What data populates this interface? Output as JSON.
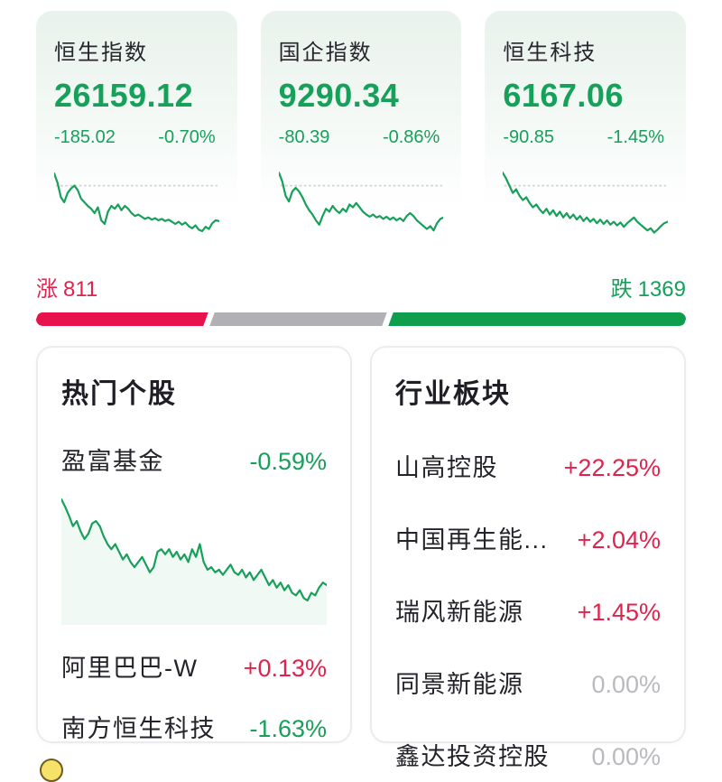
{
  "colors": {
    "up": "#e0234d",
    "down": "#16a05a",
    "flat": "#b9b9bf",
    "bar_up": "#e8124d",
    "bar_flat": "#b1b1b5",
    "bar_down": "#0e9e4e",
    "dash": "#d2d2d2"
  },
  "indices": [
    {
      "name": "恒生指数",
      "value": "26159.12",
      "change": "-185.02",
      "change_pct": "-0.70%",
      "trend": "down",
      "ref": 78,
      "sparkline": [
        95,
        82,
        62,
        55,
        68,
        74,
        78,
        72,
        60,
        55,
        50,
        46,
        40,
        48,
        30,
        25,
        42,
        50,
        46,
        52,
        44,
        50,
        46,
        40,
        36,
        38,
        35,
        32,
        34,
        31,
        33,
        30,
        32,
        29,
        31,
        28,
        25,
        28,
        24,
        27,
        22,
        19,
        23,
        17,
        15,
        21,
        18,
        26,
        30,
        29
      ]
    },
    {
      "name": "国企指数",
      "value": "9290.34",
      "change": "-80.39",
      "change_pct": "-0.86%",
      "trend": "down",
      "ref": 78,
      "sparkline": [
        96,
        84,
        64,
        56,
        70,
        75,
        70,
        62,
        52,
        44,
        38,
        30,
        24,
        36,
        46,
        42,
        50,
        44,
        40,
        46,
        42,
        52,
        48,
        54,
        48,
        42,
        38,
        35,
        38,
        34,
        36,
        32,
        35,
        31,
        34,
        30,
        33,
        29,
        36,
        40,
        36,
        30,
        26,
        22,
        18,
        22,
        16,
        26,
        32,
        34
      ]
    },
    {
      "name": "恒生科技",
      "value": "6167.06",
      "change": "-90.85",
      "change_pct": "-1.45%",
      "trend": "down",
      "ref": 78,
      "sparkline": [
        96,
        88,
        78,
        68,
        73,
        64,
        58,
        62,
        54,
        48,
        52,
        45,
        40,
        46,
        38,
        44,
        36,
        42,
        34,
        40,
        33,
        38,
        31,
        36,
        29,
        34,
        28,
        32,
        26,
        31,
        25,
        30,
        24,
        28,
        23,
        27,
        21,
        26,
        30,
        34,
        28,
        24,
        20,
        16,
        19,
        13,
        17,
        22,
        26,
        28
      ]
    }
  ],
  "breadth": {
    "up_label": "涨",
    "up_count": "811",
    "down_label": "跌",
    "down_count": "1369"
  },
  "hot_stocks": {
    "title": "热门个股",
    "featured": {
      "name": "盈富基金",
      "change_pct": "-0.59%",
      "trend": "down",
      "sparkline": [
        98,
        92,
        85,
        77,
        81,
        73,
        67,
        71,
        79,
        81,
        77,
        69,
        63,
        59,
        63,
        57,
        51,
        55,
        49,
        45,
        49,
        53,
        47,
        41,
        45,
        57,
        59,
        55,
        59,
        53,
        57,
        51,
        55,
        49,
        59,
        53,
        63,
        49,
        43,
        45,
        41,
        43,
        39,
        43,
        47,
        41,
        39,
        43,
        37,
        41,
        35,
        39,
        43,
        37,
        31,
        35,
        29,
        33,
        27,
        31,
        25,
        23,
        27,
        21,
        19,
        25,
        23,
        29,
        33,
        31
      ]
    },
    "others": [
      {
        "name": "阿里巴巴-W",
        "change_pct": "+0.13%",
        "trend": "up"
      },
      {
        "name": "南方恒生科技",
        "change_pct": "-1.63%",
        "trend": "down"
      }
    ]
  },
  "sectors": {
    "title": "行业板块",
    "items": [
      {
        "name": "山高控股",
        "change_pct": "+22.25%",
        "trend": "up"
      },
      {
        "name": "中国再生能...",
        "change_pct": "+2.04%",
        "trend": "up"
      },
      {
        "name": "瑞风新能源",
        "change_pct": "+1.45%",
        "trend": "up"
      },
      {
        "name": "同景新能源",
        "change_pct": "0.00%",
        "trend": "flat"
      },
      {
        "name": "鑫达投资控股",
        "change_pct": "0.00%",
        "trend": "flat"
      }
    ]
  }
}
